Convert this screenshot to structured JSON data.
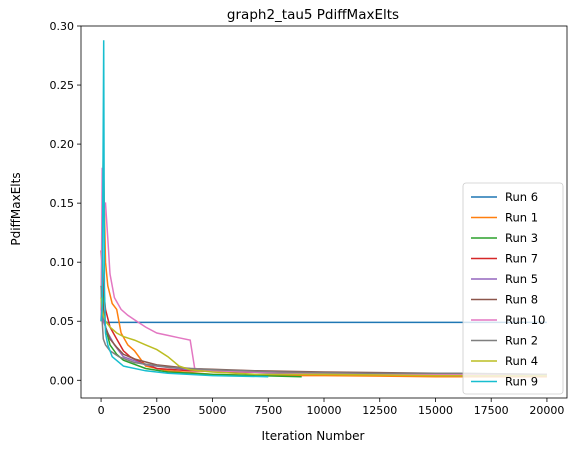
{
  "chart_data": {
    "type": "line",
    "title": "graph2_tau5 PdiffMaxElts",
    "xlabel": "Iteration Number",
    "ylabel": "PdiffMaxElts",
    "xlim": [
      -900,
      20900
    ],
    "ylim": [
      -0.015,
      0.3
    ],
    "xticks": [
      0,
      2500,
      5000,
      7500,
      10000,
      12500,
      15000,
      17500,
      20000
    ],
    "xtick_labels": [
      "0",
      "2500",
      "5000",
      "7500",
      "10000",
      "12500",
      "15000",
      "17500",
      "20000"
    ],
    "yticks": [
      0.0,
      0.05,
      0.1,
      0.15,
      0.2,
      0.25,
      0.3
    ],
    "ytick_labels": [
      "0.00",
      "0.05",
      "0.10",
      "0.15",
      "0.20",
      "0.25",
      "0.30"
    ],
    "grid": false,
    "legend_position": "lower-right",
    "series": [
      {
        "name": "Run 6",
        "color": "#1f77b4",
        "x": [
          0,
          50,
          100,
          150,
          200,
          250,
          300,
          20000
        ],
        "y": [
          0.06,
          0.05,
          0.055,
          0.049,
          0.05,
          0.049,
          0.049,
          0.049
        ]
      },
      {
        "name": "Run 1",
        "color": "#ff7f0e",
        "x": [
          0,
          100,
          200,
          300,
          500,
          700,
          900,
          1200,
          1500,
          2000,
          3000,
          5000,
          7500,
          10000,
          15000,
          20000
        ],
        "y": [
          0.06,
          0.19,
          0.1,
          0.08,
          0.065,
          0.06,
          0.04,
          0.03,
          0.025,
          0.012,
          0.008,
          0.005,
          0.004,
          0.004,
          0.003,
          0.003
        ]
      },
      {
        "name": "Run 3",
        "color": "#2ca02c",
        "x": [
          0,
          50,
          100,
          200,
          400,
          700,
          1000,
          2000,
          3000,
          5000,
          7000,
          9000
        ],
        "y": [
          0.05,
          0.11,
          0.06,
          0.045,
          0.03,
          0.022,
          0.017,
          0.01,
          0.007,
          0.005,
          0.004,
          0.003
        ]
      },
      {
        "name": "Run 7",
        "color": "#d62728",
        "x": [
          0,
          100,
          200,
          400,
          700,
          1000,
          1300,
          1800,
          2500,
          4000,
          6000,
          10000,
          15000,
          20000
        ],
        "y": [
          0.11,
          0.08,
          0.06,
          0.045,
          0.035,
          0.025,
          0.02,
          0.015,
          0.01,
          0.008,
          0.007,
          0.006,
          0.005,
          0.005
        ]
      },
      {
        "name": "Run 5",
        "color": "#9467bd",
        "x": [
          0,
          100,
          300,
          600,
          1000,
          2000,
          4000,
          8000,
          12000,
          16000,
          20000
        ],
        "y": [
          0.07,
          0.05,
          0.04,
          0.03,
          0.02,
          0.013,
          0.009,
          0.006,
          0.005,
          0.004,
          0.004
        ]
      },
      {
        "name": "Run 8",
        "color": "#8c564b",
        "x": [
          0,
          100,
          200,
          400,
          700,
          1000,
          1500,
          2500,
          4000,
          7000,
          10000,
          15000,
          20000
        ],
        "y": [
          0.08,
          0.06,
          0.045,
          0.035,
          0.028,
          0.022,
          0.018,
          0.013,
          0.01,
          0.008,
          0.007,
          0.006,
          0.005
        ]
      },
      {
        "name": "Run 10",
        "color": "#e377c2",
        "x": [
          0,
          50,
          120,
          200,
          300,
          400,
          600,
          900,
          1200,
          1600,
          2000,
          2500,
          3000,
          3500,
          4000,
          4200,
          5000,
          7000,
          10000,
          15000,
          20000
        ],
        "y": [
          0.05,
          0.18,
          0.15,
          0.15,
          0.12,
          0.09,
          0.07,
          0.06,
          0.055,
          0.05,
          0.045,
          0.04,
          0.038,
          0.036,
          0.034,
          0.01,
          0.008,
          0.007,
          0.006,
          0.005,
          0.005
        ]
      },
      {
        "name": "Run 2",
        "color": "#7f7f7f",
        "x": [
          0,
          50,
          100,
          200,
          400,
          800,
          1500,
          3000,
          5000,
          8000,
          12000,
          16000,
          20000
        ],
        "y": [
          0.08,
          0.05,
          0.035,
          0.03,
          0.025,
          0.02,
          0.015,
          0.011,
          0.009,
          0.007,
          0.006,
          0.006,
          0.005
        ]
      },
      {
        "name": "Run 4",
        "color": "#bcbd22",
        "x": [
          0,
          50,
          100,
          200,
          400,
          700,
          1000,
          1500,
          2000,
          2500,
          3000,
          3500,
          4000,
          5000,
          7000,
          10000,
          15000,
          20000
        ],
        "y": [
          0.07,
          0.06,
          0.055,
          0.05,
          0.045,
          0.04,
          0.037,
          0.034,
          0.03,
          0.026,
          0.02,
          0.012,
          0.009,
          0.007,
          0.005,
          0.005,
          0.004,
          0.004
        ]
      },
      {
        "name": "Run 9",
        "color": "#17becf",
        "x": [
          0,
          50,
          120,
          150,
          200,
          300,
          500,
          1000,
          2000,
          3000,
          5000,
          7500
        ],
        "y": [
          0.05,
          0.06,
          0.288,
          0.08,
          0.04,
          0.03,
          0.02,
          0.012,
          0.008,
          0.006,
          0.004,
          0.003
        ]
      }
    ]
  }
}
